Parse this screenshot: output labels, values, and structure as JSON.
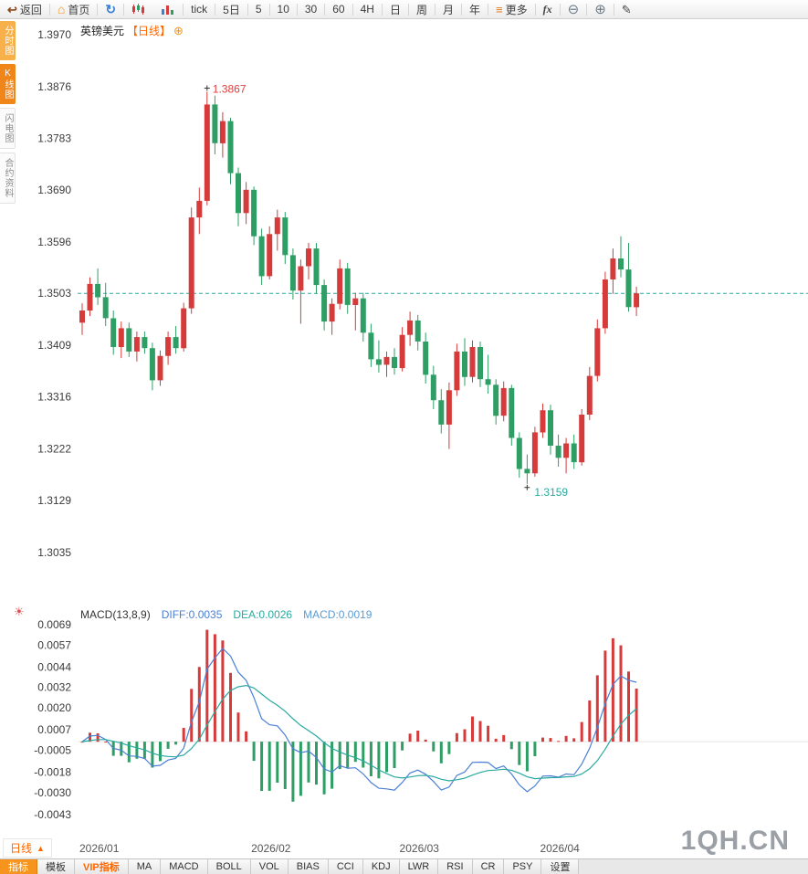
{
  "icons": {
    "back": "↩",
    "home": "⌂",
    "refresh": "↻",
    "menu": "≡",
    "zoom_out": "⊖",
    "zoom_in": "⊕",
    "pen": "✎",
    "add": "⊕",
    "sun": "☀",
    "caret_up": "▲"
  },
  "toolbar": {
    "back_label": "返回",
    "home_label": "首页",
    "tick_label": "tick",
    "five_day_label": "5日",
    "periods": [
      "5",
      "10",
      "30",
      "60",
      "4H",
      "日",
      "周",
      "月",
      "年"
    ],
    "more_label": "更多",
    "fx_label": "fx"
  },
  "sidebar": {
    "items": [
      {
        "label": "分时图"
      },
      {
        "label": "K线图"
      },
      {
        "label": "闪电图"
      },
      {
        "label": "合约资料"
      }
    ]
  },
  "chart_header": {
    "symbol": "英镑美元",
    "period_tag": "【日线】"
  },
  "macd_header": {
    "name": "MACD(13,8,9)",
    "diff": "DIFF:0.0035",
    "dea": "DEA:0.0026",
    "macd": "MACD:0.0019"
  },
  "bottom": {
    "period_button": "日线",
    "watermark": "1QH.CN",
    "tabs": [
      "指标",
      "模板",
      "VIP指标",
      "MA",
      "MACD",
      "BOLL",
      "VOL",
      "BIAS",
      "CCI",
      "KDJ",
      "LWR",
      "RSI",
      "CR",
      "PSY",
      "设置"
    ]
  },
  "chart_data": {
    "type": "candlestick",
    "title": "英镑美元 日线",
    "y_ticks": [
      1.397,
      1.3876,
      1.3783,
      1.369,
      1.3596,
      1.3503,
      1.3409,
      1.3316,
      1.3222,
      1.3129,
      1.3035
    ],
    "dashed_line": 1.3503,
    "high_label": "1.3867",
    "low_label": "1.3159",
    "up_color": "#d63b3b",
    "down_color": "#2e9e64",
    "x_labels": [
      "2026/01",
      "2026/02",
      "2026/03",
      "2026/04"
    ],
    "x_label_indices": [
      0,
      22,
      41,
      59
    ],
    "candles": [
      [
        1.345,
        1.3485,
        1.3428,
        1.3472
      ],
      [
        1.3472,
        1.3532,
        1.3462,
        1.352
      ],
      [
        1.352,
        1.3548,
        1.3482,
        1.3496
      ],
      [
        1.3496,
        1.3522,
        1.3444,
        1.3458
      ],
      [
        1.3458,
        1.3472,
        1.3392,
        1.3406
      ],
      [
        1.3406,
        1.3452,
        1.3386,
        1.344
      ],
      [
        1.344,
        1.345,
        1.3388,
        1.3398
      ],
      [
        1.3398,
        1.3434,
        1.338,
        1.3424
      ],
      [
        1.3424,
        1.3434,
        1.3394,
        1.3404
      ],
      [
        1.3404,
        1.3414,
        1.3328,
        1.3346
      ],
      [
        1.3346,
        1.34,
        1.3336,
        1.339
      ],
      [
        1.339,
        1.3434,
        1.3374,
        1.3424
      ],
      [
        1.3424,
        1.3444,
        1.3394,
        1.3404
      ],
      [
        1.3404,
        1.3486,
        1.3398,
        1.3476
      ],
      [
        1.3476,
        1.3658,
        1.3466,
        1.364
      ],
      [
        1.364,
        1.3694,
        1.361,
        1.367
      ],
      [
        1.367,
        1.3867,
        1.3662,
        1.3844
      ],
      [
        1.3844,
        1.386,
        1.3754,
        1.3774
      ],
      [
        1.3774,
        1.383,
        1.3748,
        1.3814
      ],
      [
        1.3814,
        1.382,
        1.37,
        1.372
      ],
      [
        1.372,
        1.373,
        1.3624,
        1.3648
      ],
      [
        1.3648,
        1.3704,
        1.3628,
        1.369
      ],
      [
        1.369,
        1.3696,
        1.359,
        1.3606
      ],
      [
        1.3606,
        1.362,
        1.3518,
        1.3534
      ],
      [
        1.3534,
        1.3624,
        1.3528,
        1.361
      ],
      [
        1.361,
        1.3654,
        1.358,
        1.364
      ],
      [
        1.364,
        1.365,
        1.3556,
        1.3572
      ],
      [
        1.3572,
        1.3584,
        1.3492,
        1.3508
      ],
      [
        1.3508,
        1.3564,
        1.3448,
        1.3552
      ],
      [
        1.3552,
        1.3594,
        1.3528,
        1.3584
      ],
      [
        1.3584,
        1.3594,
        1.3502,
        1.3518
      ],
      [
        1.3518,
        1.3528,
        1.3436,
        1.3452
      ],
      [
        1.3452,
        1.3494,
        1.3428,
        1.3484
      ],
      [
        1.3484,
        1.3564,
        1.3474,
        1.3548
      ],
      [
        1.3548,
        1.3558,
        1.3466,
        1.3482
      ],
      [
        1.3482,
        1.3504,
        1.3436,
        1.3494
      ],
      [
        1.3494,
        1.3504,
        1.3416,
        1.3432
      ],
      [
        1.3432,
        1.3448,
        1.337,
        1.3384
      ],
      [
        1.3384,
        1.3418,
        1.336,
        1.3374
      ],
      [
        1.3374,
        1.3398,
        1.3352,
        1.3388
      ],
      [
        1.3388,
        1.3404,
        1.3356,
        1.3368
      ],
      [
        1.3368,
        1.3442,
        1.3362,
        1.3428
      ],
      [
        1.3428,
        1.347,
        1.3408,
        1.3454
      ],
      [
        1.3454,
        1.3464,
        1.34,
        1.3416
      ],
      [
        1.3416,
        1.3432,
        1.334,
        1.3356
      ],
      [
        1.3356,
        1.3372,
        1.3294,
        1.331
      ],
      [
        1.331,
        1.333,
        1.325,
        1.3266
      ],
      [
        1.3266,
        1.3342,
        1.3222,
        1.3328
      ],
      [
        1.3328,
        1.3412,
        1.3318,
        1.3398
      ],
      [
        1.3398,
        1.3422,
        1.3336,
        1.3352
      ],
      [
        1.3352,
        1.3418,
        1.3342,
        1.3406
      ],
      [
        1.3406,
        1.3416,
        1.3334,
        1.3348
      ],
      [
        1.3348,
        1.3392,
        1.3322,
        1.3338
      ],
      [
        1.3338,
        1.3348,
        1.3266,
        1.3282
      ],
      [
        1.3282,
        1.3344,
        1.3272,
        1.3332
      ],
      [
        1.3332,
        1.3338,
        1.3228,
        1.3242
      ],
      [
        1.3242,
        1.3252,
        1.317,
        1.3186
      ],
      [
        1.3186,
        1.3212,
        1.3159,
        1.3178
      ],
      [
        1.3178,
        1.3262,
        1.3172,
        1.3252
      ],
      [
        1.3252,
        1.3304,
        1.3242,
        1.3292
      ],
      [
        1.3292,
        1.3302,
        1.3212,
        1.3228
      ],
      [
        1.3228,
        1.3248,
        1.319,
        1.3206
      ],
      [
        1.3206,
        1.3242,
        1.3178,
        1.3232
      ],
      [
        1.3232,
        1.3248,
        1.3186,
        1.3198
      ],
      [
        1.3198,
        1.3294,
        1.3192,
        1.3284
      ],
      [
        1.3284,
        1.337,
        1.3274,
        1.3354
      ],
      [
        1.3354,
        1.3456,
        1.3344,
        1.344
      ],
      [
        1.344,
        1.3542,
        1.343,
        1.3528
      ],
      [
        1.3528,
        1.3584,
        1.3502,
        1.3566
      ],
      [
        1.3566,
        1.3606,
        1.3532,
        1.3546
      ],
      [
        1.3546,
        1.3594,
        1.347,
        1.3478
      ],
      [
        1.3478,
        1.3515,
        1.3462,
        1.3503
      ]
    ],
    "macd": {
      "params": "13,8,9",
      "diff": 0.0035,
      "dea": 0.0026,
      "macd": 0.0019,
      "y_ticks": [
        0.0069,
        0.0057,
        0.0044,
        0.0032,
        0.002,
        0.0007,
        -0.0005,
        -0.0018,
        -0.003,
        -0.0043
      ],
      "diff_color": "#4a7fd5",
      "dea_color": "#2aa9a0"
    }
  }
}
